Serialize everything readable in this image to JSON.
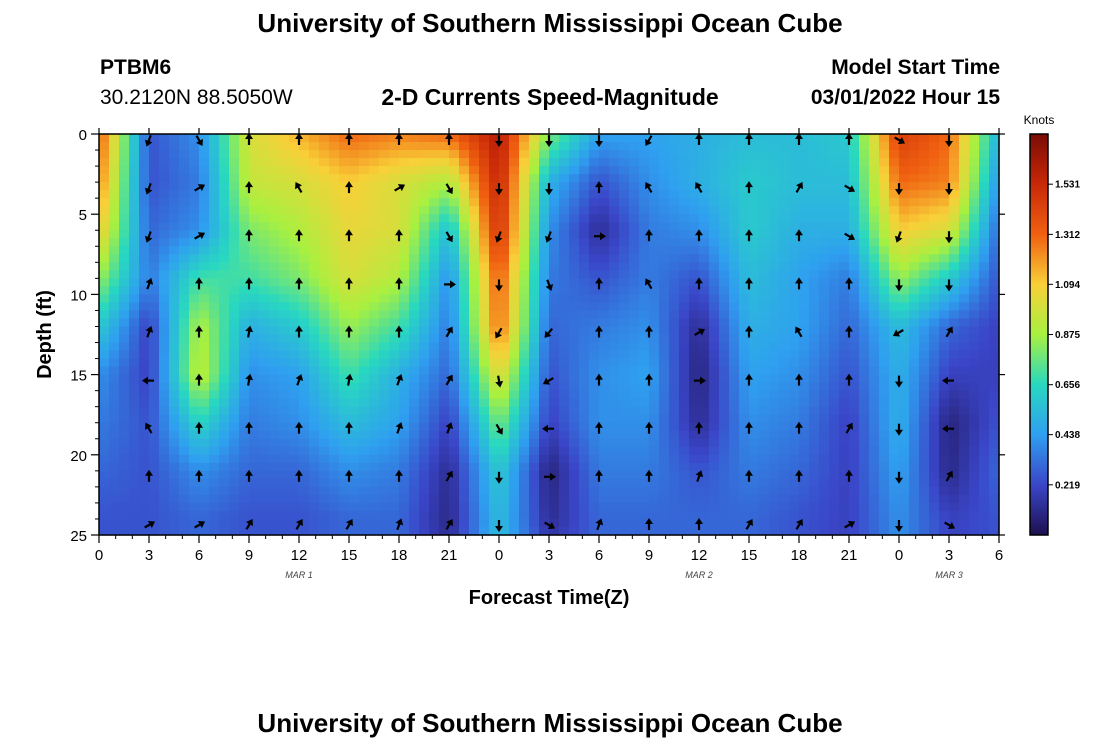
{
  "header": {
    "title": "University of Southern Mississippi Ocean Cube",
    "station_id": "PTBM6",
    "station_coords": "30.2120N  88.5050W",
    "subtitle": "2-D Currents Speed-Magnitude",
    "model_label": "Model Start Time",
    "model_time": "03/01/2022 Hour 15"
  },
  "footer": {
    "title": "University of Southern Mississippi Ocean Cube"
  },
  "chart_data": {
    "type": "heatmap",
    "title": "2-D Currents Speed-Magnitude",
    "xlabel": "Forecast Time(Z)",
    "ylabel": "Depth (ft)",
    "xlim": [
      0,
      54
    ],
    "ylim": [
      0,
      25
    ],
    "x_tick_values": [
      0,
      3,
      6,
      9,
      12,
      15,
      18,
      21,
      24,
      27,
      30,
      33,
      36,
      39,
      42,
      45,
      48,
      51,
      54
    ],
    "x_tick_labels": [
      "0",
      "3",
      "6",
      "9",
      "12",
      "15",
      "18",
      "21",
      "0",
      "3",
      "6",
      "9",
      "12",
      "15",
      "18",
      "21",
      "0",
      "3",
      "6"
    ],
    "y_tick_values": [
      0,
      5,
      10,
      15,
      20,
      25
    ],
    "y_tick_labels": [
      "0",
      "5",
      "10",
      "15",
      "20",
      "25"
    ],
    "date_labels": [
      {
        "x": 12,
        "text": "MAR 1"
      },
      {
        "x": 36,
        "text": "MAR 2"
      },
      {
        "x": 51,
        "text": "MAR 3"
      }
    ],
    "colorbar": {
      "label": "Knots",
      "range": [
        0,
        1.75
      ],
      "tick_values": [
        0.219,
        0.438,
        0.656,
        0.875,
        1.094,
        1.312,
        1.531
      ],
      "tick_labels": [
        "0.219",
        "0.438",
        "0.656",
        "0.875",
        "1.094",
        "1.312",
        "1.531"
      ],
      "colors": [
        "#1e1050",
        "#3a46c8",
        "#2f9ff0",
        "#28d8c0",
        "#a8f040",
        "#f8d038",
        "#f06010",
        "#c82808",
        "#7a0c04"
      ]
    },
    "grid_x": [
      0,
      3,
      6,
      9,
      12,
      15,
      18,
      21,
      24,
      27,
      30,
      33,
      36,
      39,
      42,
      45,
      48,
      51,
      54
    ],
    "grid_depth": [
      0,
      3,
      6,
      9,
      12,
      15,
      18,
      21,
      24,
      25
    ],
    "speed": [
      [
        1.35,
        0.25,
        0.4,
        1.0,
        1.15,
        1.3,
        1.25,
        1.3,
        1.6,
        0.8,
        0.45,
        0.45,
        0.5,
        0.55,
        0.55,
        0.6,
        1.45,
        1.3,
        0.5
      ],
      [
        1.25,
        0.25,
        0.35,
        0.95,
        1.0,
        1.1,
        1.0,
        0.9,
        1.55,
        0.5,
        0.25,
        0.4,
        0.5,
        0.6,
        0.55,
        0.55,
        1.3,
        1.25,
        0.4
      ],
      [
        1.1,
        0.3,
        0.4,
        0.8,
        0.9,
        1.05,
        1.0,
        0.55,
        1.5,
        0.4,
        0.12,
        0.35,
        0.4,
        0.6,
        0.5,
        0.5,
        1.1,
        1.0,
        0.3
      ],
      [
        0.85,
        0.35,
        0.7,
        0.7,
        0.8,
        1.0,
        0.9,
        0.4,
        1.35,
        0.35,
        0.25,
        0.35,
        0.25,
        0.55,
        0.45,
        0.35,
        0.85,
        0.6,
        0.25
      ],
      [
        0.6,
        0.2,
        0.9,
        0.5,
        0.6,
        0.85,
        0.7,
        0.35,
        1.3,
        0.3,
        0.35,
        0.4,
        0.12,
        0.5,
        0.45,
        0.3,
        0.55,
        0.3,
        0.2
      ],
      [
        0.4,
        0.2,
        0.95,
        0.4,
        0.45,
        0.7,
        0.5,
        0.3,
        1.05,
        0.25,
        0.4,
        0.45,
        0.08,
        0.45,
        0.4,
        0.25,
        0.5,
        0.2,
        0.2
      ],
      [
        0.35,
        0.25,
        0.65,
        0.35,
        0.4,
        0.55,
        0.45,
        0.2,
        0.8,
        0.2,
        0.4,
        0.4,
        0.12,
        0.4,
        0.35,
        0.2,
        0.5,
        0.08,
        0.25
      ],
      [
        0.3,
        0.25,
        0.4,
        0.3,
        0.3,
        0.4,
        0.35,
        0.12,
        0.6,
        0.08,
        0.35,
        0.35,
        0.25,
        0.35,
        0.3,
        0.2,
        0.45,
        0.1,
        0.3
      ],
      [
        0.25,
        0.25,
        0.3,
        0.25,
        0.25,
        0.3,
        0.3,
        0.1,
        0.55,
        0.12,
        0.3,
        0.3,
        0.3,
        0.3,
        0.25,
        0.2,
        0.4,
        0.2,
        0.25
      ],
      [
        0.25,
        0.25,
        0.3,
        0.25,
        0.25,
        0.3,
        0.3,
        0.12,
        0.55,
        0.15,
        0.3,
        0.3,
        0.3,
        0.3,
        0.25,
        0.2,
        0.4,
        0.2,
        0.25
      ]
    ],
    "vector_depths": [
      0,
      3,
      6,
      9,
      12,
      15,
      18,
      21,
      24
    ],
    "vector_times": [
      3,
      6,
      9,
      12,
      15,
      18,
      21,
      24,
      27,
      30,
      33,
      36,
      39,
      42,
      45,
      48,
      51
    ],
    "vector_dirs_deg": [
      [
        200,
        150,
        0,
        0,
        0,
        0,
        0,
        180,
        180,
        180,
        210,
        0,
        0,
        0,
        0,
        120,
        180
      ],
      [
        200,
        60,
        0,
        330,
        0,
        60,
        150,
        180,
        180,
        0,
        330,
        330,
        0,
        30,
        120,
        180,
        180
      ],
      [
        200,
        60,
        0,
        0,
        0,
        0,
        150,
        200,
        200,
        90,
        0,
        0,
        0,
        0,
        120,
        200,
        180
      ],
      [
        20,
        0,
        0,
        0,
        0,
        0,
        90,
        180,
        160,
        0,
        330,
        0,
        0,
        0,
        0,
        180,
        180
      ],
      [
        20,
        0,
        10,
        0,
        0,
        0,
        30,
        210,
        220,
        0,
        0,
        60,
        0,
        330,
        0,
        240,
        30
      ],
      [
        270,
        0,
        10,
        20,
        10,
        20,
        30,
        170,
        240,
        0,
        0,
        90,
        0,
        0,
        0,
        180,
        270
      ],
      [
        330,
        0,
        0,
        0,
        0,
        20,
        20,
        150,
        270,
        0,
        0,
        0,
        0,
        0,
        30,
        180,
        270
      ],
      [
        0,
        0,
        0,
        0,
        0,
        0,
        30,
        180,
        90,
        0,
        0,
        20,
        0,
        0,
        0,
        180,
        30
      ],
      [
        60,
        60,
        30,
        30,
        30,
        20,
        30,
        180,
        120,
        20,
        0,
        0,
        30,
        30,
        60,
        180,
        120
      ]
    ]
  }
}
